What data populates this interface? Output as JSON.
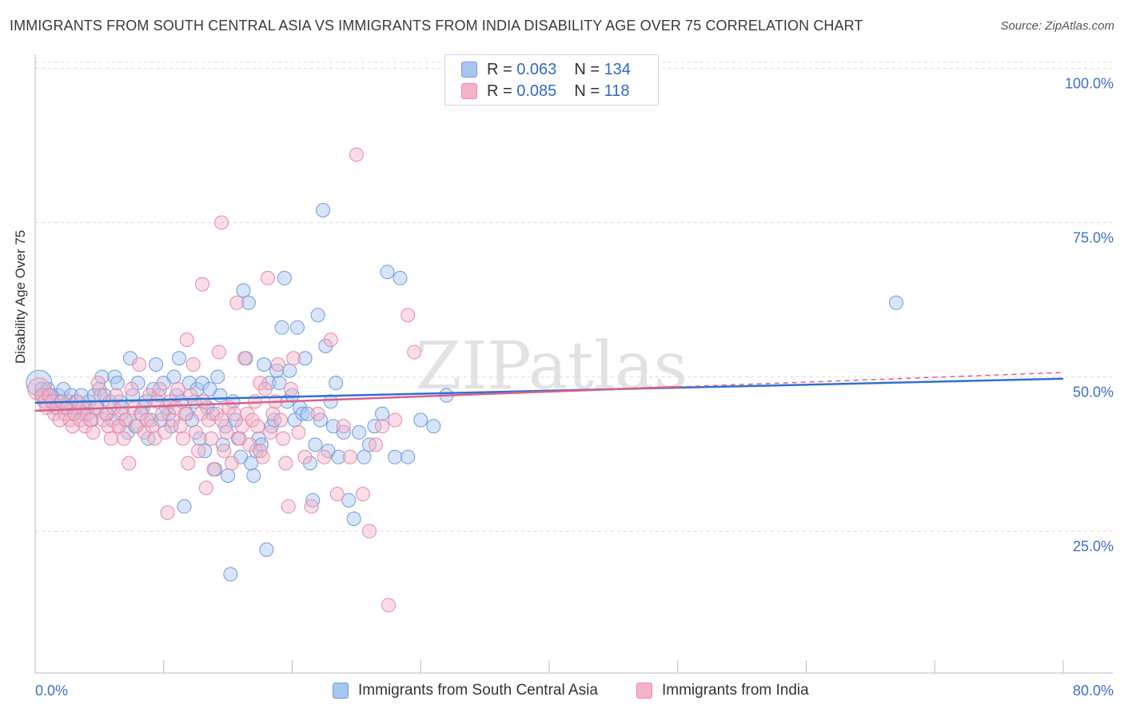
{
  "title": "IMMIGRANTS FROM SOUTH CENTRAL ASIA VS IMMIGRANTS FROM INDIA DISABILITY AGE OVER 75 CORRELATION CHART",
  "source": "Source: ZipAtlas.com",
  "watermark": "ZIPatlas",
  "legend": {
    "r_label": "R =",
    "n_label": "N =",
    "rows": [
      {
        "r": "0.063",
        "n": "134"
      },
      {
        "r": "0.085",
        "n": "118"
      }
    ]
  },
  "colors": {
    "blue_fill": "#a9c6f0",
    "blue_stroke": "#6f9bdc",
    "blue_line": "#3070d0",
    "pink_fill": "#f5b3c8",
    "pink_stroke": "#e58aa8",
    "pink_line": "#d9608a",
    "tick_label": "#3f6fc9"
  },
  "chart_data": {
    "type": "scatter",
    "title": "IMMIGRANTS FROM SOUTH CENTRAL ASIA VS IMMIGRANTS FROM INDIA DISABILITY AGE OVER 75 CORRELATION CHART",
    "xlabel": "",
    "ylabel": "Disability Age Over 75",
    "x_tick_labels": [
      "0.0%",
      "80.0%"
    ],
    "y_tick_labels": [
      "100.0%",
      "75.0%",
      "50.0%",
      "25.0%"
    ],
    "y_ticks": [
      100,
      75,
      50,
      25
    ],
    "xlim": [
      0,
      80
    ],
    "ylim": [
      2,
      102
    ],
    "grid": true,
    "legend_position": "top-center",
    "series": [
      {
        "name": "Immigrants from South Central Asia",
        "color": "#a9c6f0",
        "r": 0.063,
        "n": 134,
        "trend": {
          "x": [
            0,
            80
          ],
          "y": [
            45.8,
            49.7
          ],
          "dashed_from": null
        },
        "points": [
          [
            0.3,
            49
          ],
          [
            0.5,
            48
          ],
          [
            0.6,
            47
          ],
          [
            0.8,
            46
          ],
          [
            1.0,
            48
          ],
          [
            1.2,
            47
          ],
          [
            1.4,
            46
          ],
          [
            1.6,
            45
          ],
          [
            1.8,
            47
          ],
          [
            2.0,
            46
          ],
          [
            2.2,
            48
          ],
          [
            2.4,
            45
          ],
          [
            2.6,
            46
          ],
          [
            2.8,
            47
          ],
          [
            3.0,
            44
          ],
          [
            3.2,
            46
          ],
          [
            3.4,
            45
          ],
          [
            3.6,
            47
          ],
          [
            3.8,
            44
          ],
          [
            4.0,
            45
          ],
          [
            4.2,
            46
          ],
          [
            4.4,
            43
          ],
          [
            4.6,
            47
          ],
          [
            4.8,
            45
          ],
          [
            5.0,
            48
          ],
          [
            5.2,
            50
          ],
          [
            5.4,
            47
          ],
          [
            5.6,
            44
          ],
          [
            5.8,
            46
          ],
          [
            6.0,
            43
          ],
          [
            6.2,
            50
          ],
          [
            6.4,
            49
          ],
          [
            6.6,
            46
          ],
          [
            6.8,
            45
          ],
          [
            7.0,
            43
          ],
          [
            7.2,
            41
          ],
          [
            7.4,
            53
          ],
          [
            7.6,
            47
          ],
          [
            7.8,
            42
          ],
          [
            8.0,
            49
          ],
          [
            8.2,
            44
          ],
          [
            8.4,
            45
          ],
          [
            8.6,
            46
          ],
          [
            8.8,
            40
          ],
          [
            9.0,
            43
          ],
          [
            9.2,
            48
          ],
          [
            9.4,
            52
          ],
          [
            9.6,
            47
          ],
          [
            9.8,
            43
          ],
          [
            10.0,
            49
          ],
          [
            10.2,
            45
          ],
          [
            10.4,
            44
          ],
          [
            10.6,
            42
          ],
          [
            10.8,
            50
          ],
          [
            11.0,
            47
          ],
          [
            11.2,
            53
          ],
          [
            11.4,
            46
          ],
          [
            11.6,
            29
          ],
          [
            11.8,
            44
          ],
          [
            12.0,
            49
          ],
          [
            12.2,
            43
          ],
          [
            12.4,
            46
          ],
          [
            12.6,
            48
          ],
          [
            12.8,
            40
          ],
          [
            13.0,
            49
          ],
          [
            13.2,
            38
          ],
          [
            13.4,
            45
          ],
          [
            13.6,
            48
          ],
          [
            13.8,
            44
          ],
          [
            14.0,
            35
          ],
          [
            14.2,
            50
          ],
          [
            14.4,
            47
          ],
          [
            14.6,
            39
          ],
          [
            14.8,
            42
          ],
          [
            15.0,
            34
          ],
          [
            15.2,
            18
          ],
          [
            15.4,
            46
          ],
          [
            15.6,
            43
          ],
          [
            15.8,
            40
          ],
          [
            16.0,
            37
          ],
          [
            16.2,
            64
          ],
          [
            16.4,
            53
          ],
          [
            16.6,
            62
          ],
          [
            16.8,
            36
          ],
          [
            17.0,
            34
          ],
          [
            17.2,
            38
          ],
          [
            17.4,
            40
          ],
          [
            17.6,
            39
          ],
          [
            17.8,
            52
          ],
          [
            18.0,
            22
          ],
          [
            18.2,
            49
          ],
          [
            18.4,
            42
          ],
          [
            18.6,
            43
          ],
          [
            18.8,
            51
          ],
          [
            19.0,
            49
          ],
          [
            19.2,
            58
          ],
          [
            19.4,
            66
          ],
          [
            19.6,
            46
          ],
          [
            19.8,
            51
          ],
          [
            20.0,
            47
          ],
          [
            20.2,
            43
          ],
          [
            20.4,
            58
          ],
          [
            20.6,
            45
          ],
          [
            20.8,
            44
          ],
          [
            21.0,
            53
          ],
          [
            21.2,
            44
          ],
          [
            21.4,
            36
          ],
          [
            21.6,
            30
          ],
          [
            21.8,
            39
          ],
          [
            22.0,
            60
          ],
          [
            22.2,
            43
          ],
          [
            22.4,
            77
          ],
          [
            22.6,
            55
          ],
          [
            22.8,
            38
          ],
          [
            23.0,
            46
          ],
          [
            23.2,
            42
          ],
          [
            23.4,
            49
          ],
          [
            23.6,
            37
          ],
          [
            24.0,
            41
          ],
          [
            24.4,
            30
          ],
          [
            24.8,
            27
          ],
          [
            25.2,
            41
          ],
          [
            25.6,
            37
          ],
          [
            26.0,
            39
          ],
          [
            26.4,
            42
          ],
          [
            27.0,
            44
          ],
          [
            27.4,
            67
          ],
          [
            28.0,
            37
          ],
          [
            28.4,
            66
          ],
          [
            29.0,
            37
          ],
          [
            30.0,
            43
          ],
          [
            31.0,
            42
          ],
          [
            32.0,
            47
          ],
          [
            67.0,
            62
          ]
        ]
      },
      {
        "name": "Immigrants from India",
        "color": "#f5b3c8",
        "r": 0.085,
        "n": 118,
        "trend": {
          "x": [
            0,
            80
          ],
          "y": [
            44.5,
            50.7
          ],
          "dashed_from": 50
        },
        "points": [
          [
            0.3,
            48
          ],
          [
            0.5,
            47
          ],
          [
            0.7,
            46
          ],
          [
            0.9,
            45
          ],
          [
            1.1,
            47
          ],
          [
            1.3,
            46
          ],
          [
            1.5,
            44
          ],
          [
            1.7,
            45
          ],
          [
            1.9,
            43
          ],
          [
            2.1,
            46
          ],
          [
            2.3,
            44
          ],
          [
            2.5,
            45
          ],
          [
            2.7,
            43
          ],
          [
            2.9,
            42
          ],
          [
            3.1,
            44
          ],
          [
            3.3,
            46
          ],
          [
            3.5,
            43
          ],
          [
            3.7,
            45
          ],
          [
            3.9,
            42
          ],
          [
            4.1,
            44
          ],
          [
            4.3,
            43
          ],
          [
            4.5,
            41
          ],
          [
            4.7,
            45
          ],
          [
            4.9,
            49
          ],
          [
            5.1,
            47
          ],
          [
            5.3,
            43
          ],
          [
            5.5,
            44
          ],
          [
            5.7,
            42
          ],
          [
            5.9,
            40
          ],
          [
            6.1,
            45
          ],
          [
            6.3,
            47
          ],
          [
            6.5,
            42
          ],
          [
            6.7,
            44
          ],
          [
            6.9,
            40
          ],
          [
            7.1,
            43
          ],
          [
            7.3,
            36
          ],
          [
            7.5,
            48
          ],
          [
            7.7,
            45
          ],
          [
            7.9,
            42
          ],
          [
            8.1,
            52
          ],
          [
            8.3,
            44
          ],
          [
            8.5,
            41
          ],
          [
            8.7,
            43
          ],
          [
            8.9,
            47
          ],
          [
            9.1,
            42
          ],
          [
            9.3,
            40
          ],
          [
            9.5,
            46
          ],
          [
            9.7,
            48
          ],
          [
            9.9,
            44
          ],
          [
            10.1,
            41
          ],
          [
            10.3,
            28
          ],
          [
            10.5,
            46
          ],
          [
            10.7,
            43
          ],
          [
            10.9,
            45
          ],
          [
            11.1,
            48
          ],
          [
            11.3,
            42
          ],
          [
            11.5,
            40
          ],
          [
            11.7,
            44
          ],
          [
            11.9,
            36
          ],
          [
            12.1,
            47
          ],
          [
            12.3,
            52
          ],
          [
            12.5,
            41
          ],
          [
            12.7,
            38
          ],
          [
            12.9,
            44
          ],
          [
            13.1,
            46
          ],
          [
            13.3,
            32
          ],
          [
            13.5,
            43
          ],
          [
            13.7,
            40
          ],
          [
            13.9,
            35
          ],
          [
            14.1,
            44
          ],
          [
            14.3,
            54
          ],
          [
            14.5,
            43
          ],
          [
            14.7,
            38
          ],
          [
            14.9,
            41
          ],
          [
            15.1,
            45
          ],
          [
            15.3,
            36
          ],
          [
            15.5,
            44
          ],
          [
            15.7,
            62
          ],
          [
            15.9,
            40
          ],
          [
            16.1,
            42
          ],
          [
            16.3,
            53
          ],
          [
            16.5,
            44
          ],
          [
            16.7,
            39
          ],
          [
            16.9,
            43
          ],
          [
            17.1,
            46
          ],
          [
            17.3,
            42
          ],
          [
            17.5,
            49
          ],
          [
            17.7,
            37
          ],
          [
            17.9,
            48
          ],
          [
            18.1,
            66
          ],
          [
            18.3,
            41
          ],
          [
            18.5,
            44
          ],
          [
            18.7,
            46
          ],
          [
            18.9,
            52
          ],
          [
            19.1,
            43
          ],
          [
            19.3,
            40
          ],
          [
            19.5,
            36
          ],
          [
            19.7,
            29
          ],
          [
            19.9,
            48
          ],
          [
            20.1,
            53
          ],
          [
            20.5,
            41
          ],
          [
            21.0,
            37
          ],
          [
            21.5,
            29
          ],
          [
            22.0,
            44
          ],
          [
            22.5,
            37
          ],
          [
            23.0,
            56
          ],
          [
            23.5,
            31
          ],
          [
            24.0,
            42
          ],
          [
            24.5,
            37
          ],
          [
            25.0,
            86
          ],
          [
            25.5,
            31
          ],
          [
            26.0,
            25
          ],
          [
            26.5,
            39
          ],
          [
            27.0,
            42
          ],
          [
            27.5,
            13
          ],
          [
            28.0,
            43
          ],
          [
            29.0,
            60
          ],
          [
            29.5,
            54
          ]
        ]
      }
    ]
  },
  "extra_pink_points": [
    [
      13.0,
      65
    ],
    [
      14.5,
      75
    ],
    [
      11.8,
      56
    ],
    [
      17.5,
      38
    ],
    [
      6.5,
      42
    ]
  ]
}
